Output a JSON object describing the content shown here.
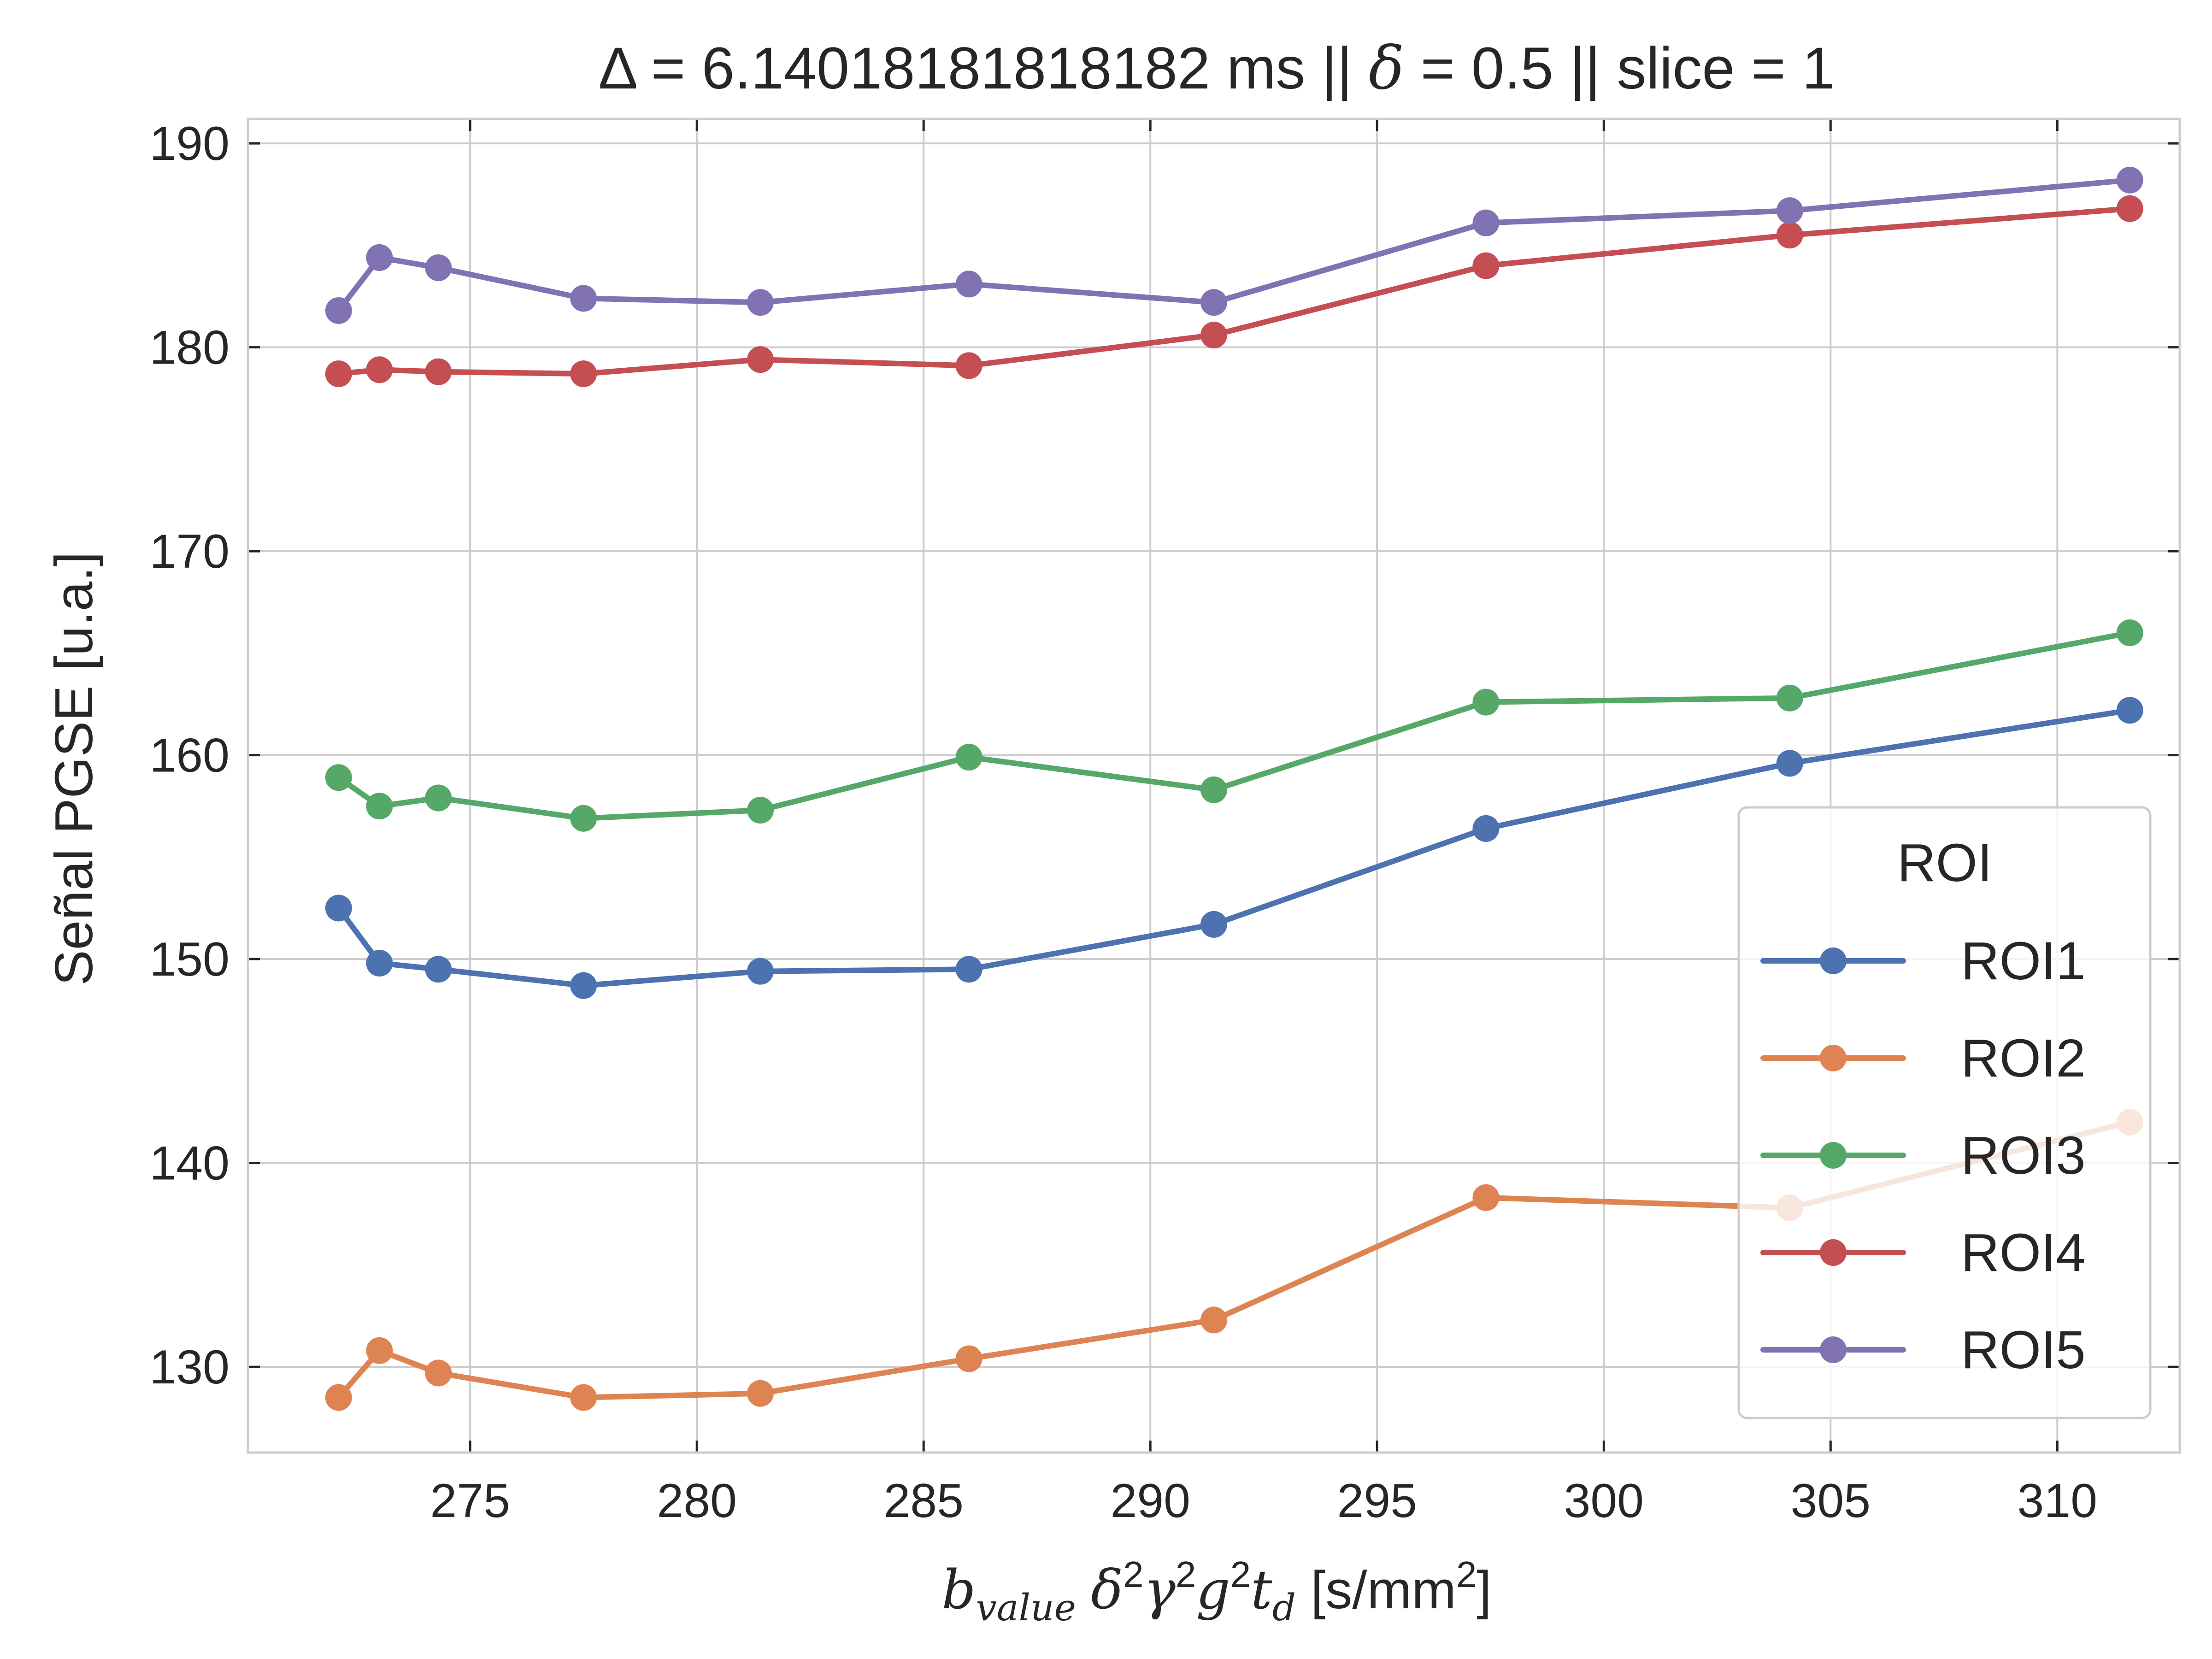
{
  "chart_data": {
    "type": "line",
    "title": {
      "part1": "Δ = 6.14018181818182 ms  ||  ",
      "delta_symbol": "δ",
      "part2": " = 0.5 || slice = 1"
    },
    "xlabel": {
      "b": "b",
      "value_sub": "value",
      "delta": "δ",
      "gamma": "γ",
      "g": "g",
      "t": "t",
      "d_sub": "d",
      "sup2": "2",
      "units_open": " [s/mm",
      "units_close": "]"
    },
    "ylabel": "Señal PGSE [u.a.]",
    "xlim": [
      270.1,
      312.7
    ],
    "ylim": [
      125.8,
      191.2
    ],
    "xticks": [
      275,
      280,
      285,
      290,
      295,
      300,
      305,
      310
    ],
    "yticks": [
      130,
      140,
      150,
      160,
      170,
      180,
      190
    ],
    "grid": true,
    "x": [
      272.1,
      273.0,
      274.3,
      277.5,
      281.4,
      286.0,
      291.4,
      297.4,
      304.1,
      311.6
    ],
    "series": [
      {
        "name": "ROI1",
        "color": "#4C72B0",
        "values": [
          152.5,
          149.8,
          149.5,
          148.7,
          149.4,
          149.5,
          151.7,
          156.4,
          159.6,
          162.2
        ]
      },
      {
        "name": "ROI2",
        "color": "#DD8452",
        "values": [
          128.5,
          130.8,
          129.7,
          128.5,
          128.7,
          130.4,
          132.3,
          138.3,
          137.8,
          142.0
        ]
      },
      {
        "name": "ROI3",
        "color": "#55A868",
        "values": [
          158.9,
          157.5,
          157.9,
          156.9,
          157.3,
          159.9,
          158.3,
          162.6,
          162.8,
          166.0
        ]
      },
      {
        "name": "ROI4",
        "color": "#C44E52",
        "values": [
          178.7,
          178.9,
          178.8,
          178.7,
          179.4,
          179.1,
          180.6,
          184.0,
          185.5,
          186.8
        ]
      },
      {
        "name": "ROI5",
        "color": "#8172B3",
        "values": [
          181.8,
          184.4,
          183.9,
          182.4,
          182.2,
          183.1,
          182.2,
          186.1,
          186.7,
          188.2
        ]
      }
    ],
    "legend": {
      "title": "ROI",
      "placement": "lower-right"
    }
  }
}
